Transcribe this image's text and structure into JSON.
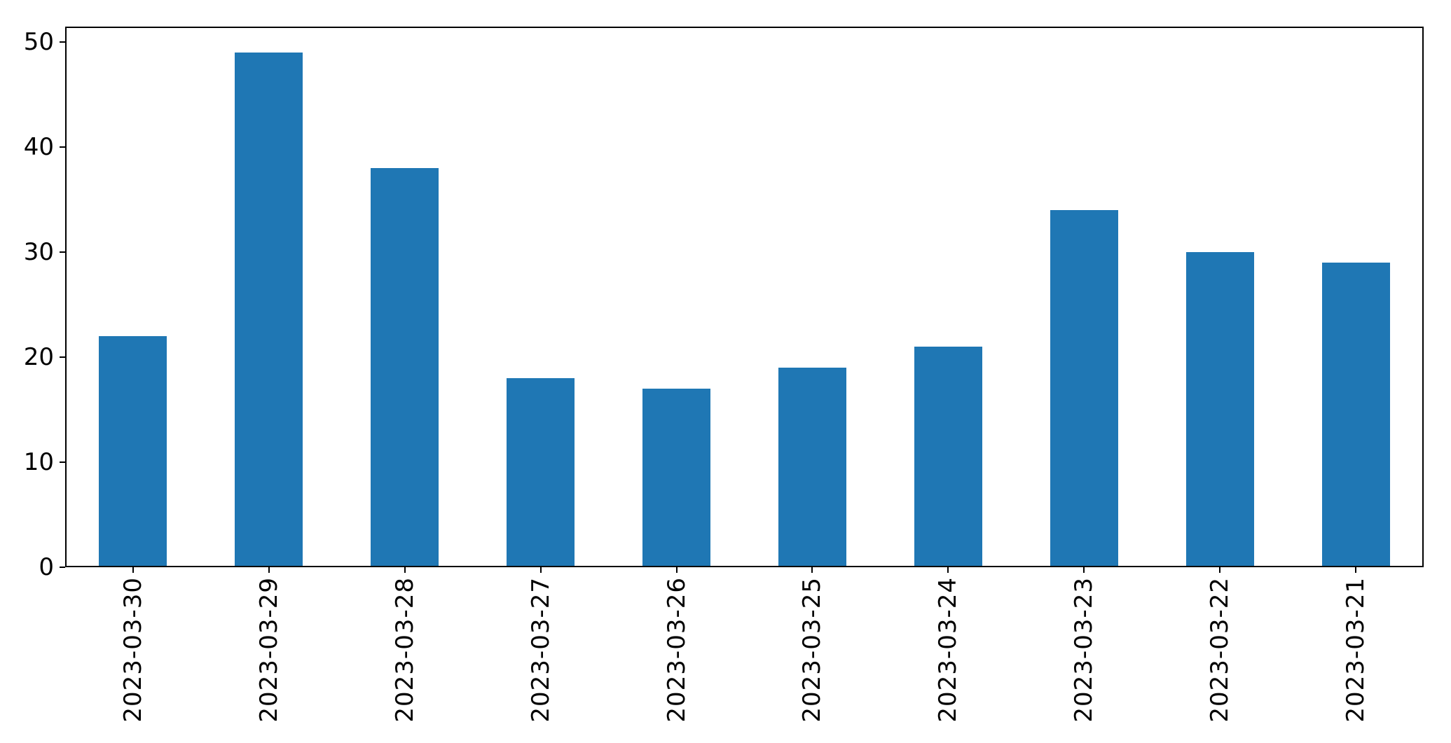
{
  "chart_data": {
    "type": "bar",
    "title": "",
    "xlabel": "",
    "ylabel": "",
    "categories": [
      "2023-03-30",
      "2023-03-29",
      "2023-03-28",
      "2023-03-27",
      "2023-03-26",
      "2023-03-25",
      "2023-03-24",
      "2023-03-23",
      "2023-03-22",
      "2023-03-21"
    ],
    "values": [
      22,
      49,
      38,
      18,
      17,
      19,
      21,
      34,
      30,
      29
    ],
    "ylim": [
      0,
      51.45
    ],
    "yticks": [
      0,
      10,
      20,
      30,
      40,
      50
    ],
    "x_tick_rotation": 90,
    "grid": false,
    "legend": null,
    "bar_color": "#1f77b4",
    "bar_width_fraction": 0.5,
    "spine_color": "#000000",
    "tick_color": "#000000",
    "background_color": "#ffffff"
  }
}
